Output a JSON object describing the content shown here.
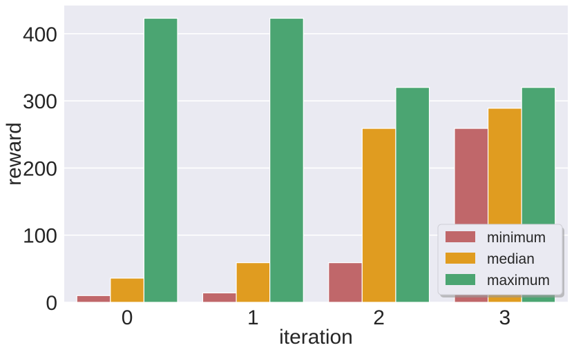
{
  "chart_data": {
    "type": "bar",
    "categories": [
      "0",
      "1",
      "2",
      "3"
    ],
    "series": [
      {
        "name": "minimum",
        "color": "#c0676a",
        "values": [
          10,
          14,
          59,
          259
        ]
      },
      {
        "name": "median",
        "color": "#e09c20",
        "values": [
          36,
          59,
          259,
          289
        ]
      },
      {
        "name": "maximum",
        "color": "#4ba572",
        "values": [
          423,
          423,
          320,
          320
        ]
      }
    ],
    "xlabel": "iteration",
    "ylabel": "reward",
    "ylim": [
      0,
      442
    ],
    "yticks": [
      0,
      100,
      200,
      300,
      400
    ],
    "grid": true,
    "legend": "lower-right",
    "background": "#eaeaf2"
  }
}
